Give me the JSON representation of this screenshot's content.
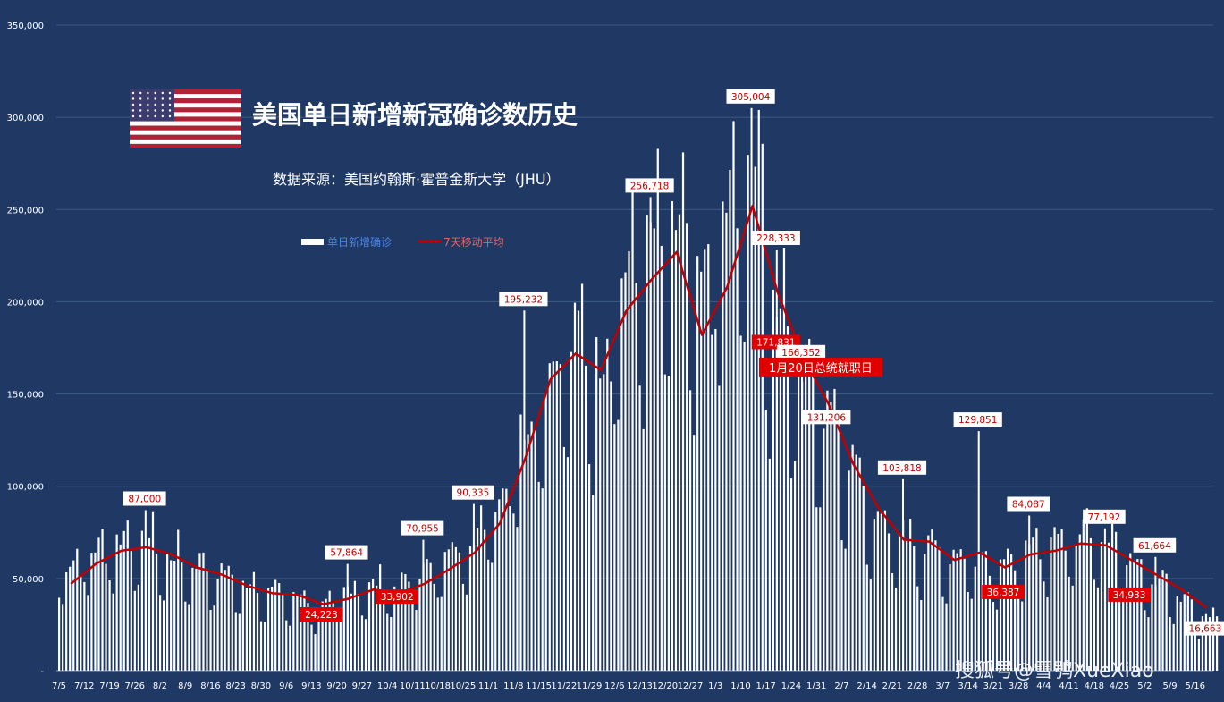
{
  "chart_data": {
    "type": "bar",
    "title": "美国单日新增新冠确诊数历史",
    "subtitle": "数据来源：美国约翰斯·霍普金斯大学（JHU）",
    "ylim": [
      0,
      350000
    ],
    "yticks": [
      "-",
      "50,000",
      "100,000",
      "150,000",
      "200,000",
      "250,000",
      "300,000",
      "350,000"
    ],
    "grid": true,
    "legend_position": "top-left",
    "categories": [
      "7/5",
      "7/12",
      "7/19",
      "7/26",
      "8/2",
      "8/9",
      "8/16",
      "8/23",
      "8/30",
      "9/6",
      "9/13",
      "9/20",
      "9/27",
      "10/4",
      "10/11",
      "10/18",
      "10/25",
      "11/1",
      "11/8",
      "11/15",
      "11/22",
      "11/29",
      "12/6",
      "12/13",
      "12/20",
      "12/27",
      "1/3",
      "1/10",
      "1/17",
      "1/24",
      "1/31",
      "2/7",
      "2/14",
      "2/21",
      "2/28",
      "3/7",
      "3/14",
      "3/21",
      "3/28",
      "4/4",
      "4/11",
      "4/18",
      "4/25",
      "5/2",
      "5/9",
      "5/16"
    ],
    "series": [
      {
        "name": "单日新增确诊",
        "type": "bar",
        "color": "#ffffff",
        "weekly_values": [
          55000,
          62000,
          68000,
          66000,
          58000,
          55000,
          50000,
          45000,
          41000,
          38000,
          33000,
          42000,
          44000,
          44000,
          51000,
          59000,
          70000,
          90000,
          125000,
          155000,
          170000,
          160000,
          205000,
          218000,
          225000,
          195000,
          235000,
          255000,
          190000,
          160000,
          130000,
          105000,
          80000,
          70000,
          65000,
          58000,
          55000,
          55000,
          62000,
          66000,
          70000,
          68000,
          55000,
          47000,
          38000,
          28000
        ]
      },
      {
        "name": "7天移动平均",
        "type": "line",
        "color": "#c00000",
        "weekly_values": [
          47000,
          58000,
          65000,
          67000,
          63000,
          56000,
          52000,
          46000,
          42000,
          41000,
          36000,
          39000,
          44000,
          42000,
          47000,
          55000,
          64000,
          80000,
          115000,
          158000,
          172000,
          163000,
          195000,
          212000,
          227000,
          182000,
          208000,
          252000,
          205000,
          170000,
          145000,
          112000,
          88000,
          71000,
          70000,
          60000,
          64000,
          56000,
          63000,
          65000,
          69000,
          68000,
          60000,
          52000,
          44000,
          34000
        ]
      }
    ],
    "data_labels": [
      {
        "text": "87,000",
        "category": "7/26",
        "value": 87000,
        "style": "white"
      },
      {
        "text": "24,223",
        "category": "9/13",
        "value": 24223,
        "style": "red"
      },
      {
        "text": "57,864",
        "category": "9/20",
        "value": 57864,
        "style": "white"
      },
      {
        "text": "33,902",
        "category": "10/4",
        "value": 33902,
        "style": "red"
      },
      {
        "text": "70,955",
        "category": "10/11",
        "value": 70955,
        "style": "white"
      },
      {
        "text": "90,335",
        "category": "10/25",
        "value": 90335,
        "style": "white"
      },
      {
        "text": "195,232",
        "category": "11/8",
        "value": 195232,
        "style": "white"
      },
      {
        "text": "256,718",
        "category": "12/13",
        "value": 256718,
        "style": "white"
      },
      {
        "text": "305,004",
        "category": "1/10",
        "value": 305004,
        "style": "white"
      },
      {
        "text": "228,333",
        "category": "1/17",
        "value": 228333,
        "style": "white"
      },
      {
        "text": "171,831",
        "category": "1/17",
        "value": 171831,
        "style": "red"
      },
      {
        "text": "166,352",
        "category": "1/24",
        "value": 166352,
        "style": "white"
      },
      {
        "text": "131,206",
        "category": "1/31",
        "value": 131206,
        "style": "white"
      },
      {
        "text": "103,818",
        "category": "2/21",
        "value": 103818,
        "style": "white"
      },
      {
        "text": "129,851",
        "category": "3/14",
        "value": 129851,
        "style": "white"
      },
      {
        "text": "36,387",
        "category": "3/21",
        "value": 36387,
        "style": "red"
      },
      {
        "text": "84,087",
        "category": "3/28",
        "value": 84087,
        "style": "white"
      },
      {
        "text": "77,192",
        "category": "4/18",
        "value": 77192,
        "style": "white"
      },
      {
        "text": "34,933",
        "category": "4/25",
        "value": 34933,
        "style": "red"
      },
      {
        "text": "61,664",
        "category": "5/2",
        "value": 61664,
        "style": "white"
      },
      {
        "text": "16,663",
        "category": "5/16",
        "value": 16663,
        "style": "white"
      }
    ],
    "annotation": {
      "text": "1月20日总统就职日",
      "category": "1/24",
      "value": 160000
    }
  },
  "watermark": "搜狐号@雪鸮XueXiao",
  "colors": {
    "background": "#1f3864",
    "grid": "#3f5a86",
    "bar": "#ffffff",
    "line": "#c00000",
    "label_red": "#e00000"
  },
  "flag_icon": "us-flag-icon"
}
